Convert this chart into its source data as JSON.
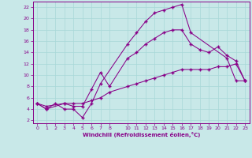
{
  "xlabel": "Windchill (Refroidissement éolien,°C)",
  "background_color": "#c8e8e8",
  "line_color": "#880088",
  "xlim": [
    -0.5,
    23.5
  ],
  "ylim": [
    1.5,
    23
  ],
  "xticks": [
    0,
    1,
    2,
    3,
    4,
    5,
    6,
    7,
    8,
    10,
    11,
    12,
    13,
    14,
    15,
    16,
    17,
    18,
    19,
    20,
    21,
    22,
    23
  ],
  "yticks": [
    2,
    4,
    6,
    8,
    10,
    12,
    14,
    16,
    18,
    20,
    22
  ],
  "grid_color": "#a8d8d8",
  "line1_x": [
    0,
    1,
    2,
    3,
    4,
    5,
    6,
    7,
    10,
    11,
    12,
    13,
    14,
    15,
    16,
    17,
    21,
    22,
    23
  ],
  "line1_y": [
    5,
    4,
    5,
    4,
    4,
    2.5,
    5,
    8.5,
    15.5,
    17.5,
    19.5,
    21,
    21.5,
    22,
    22.5,
    17.5,
    13,
    9,
    9
  ],
  "line2_x": [
    0,
    1,
    3,
    4,
    5,
    6,
    7,
    8,
    10,
    11,
    12,
    13,
    14,
    15,
    16,
    17,
    18,
    19,
    20,
    21,
    22,
    23
  ],
  "line2_y": [
    5,
    4,
    5,
    4.5,
    4.5,
    7.5,
    10.5,
    8,
    13,
    14,
    15.5,
    16.5,
    17.5,
    18,
    18,
    15.5,
    14.5,
    14,
    15,
    13.5,
    12.5,
    9
  ],
  "line3_x": [
    0,
    1,
    3,
    4,
    5,
    6,
    7,
    8,
    10,
    11,
    12,
    13,
    14,
    15,
    16,
    17,
    18,
    19,
    20,
    21,
    22,
    23
  ],
  "line3_y": [
    5,
    4.5,
    5,
    5,
    5,
    5.5,
    6,
    7,
    8,
    8.5,
    9,
    9.5,
    10,
    10.5,
    11,
    11,
    11,
    11,
    11.5,
    11.5,
    12,
    9
  ]
}
